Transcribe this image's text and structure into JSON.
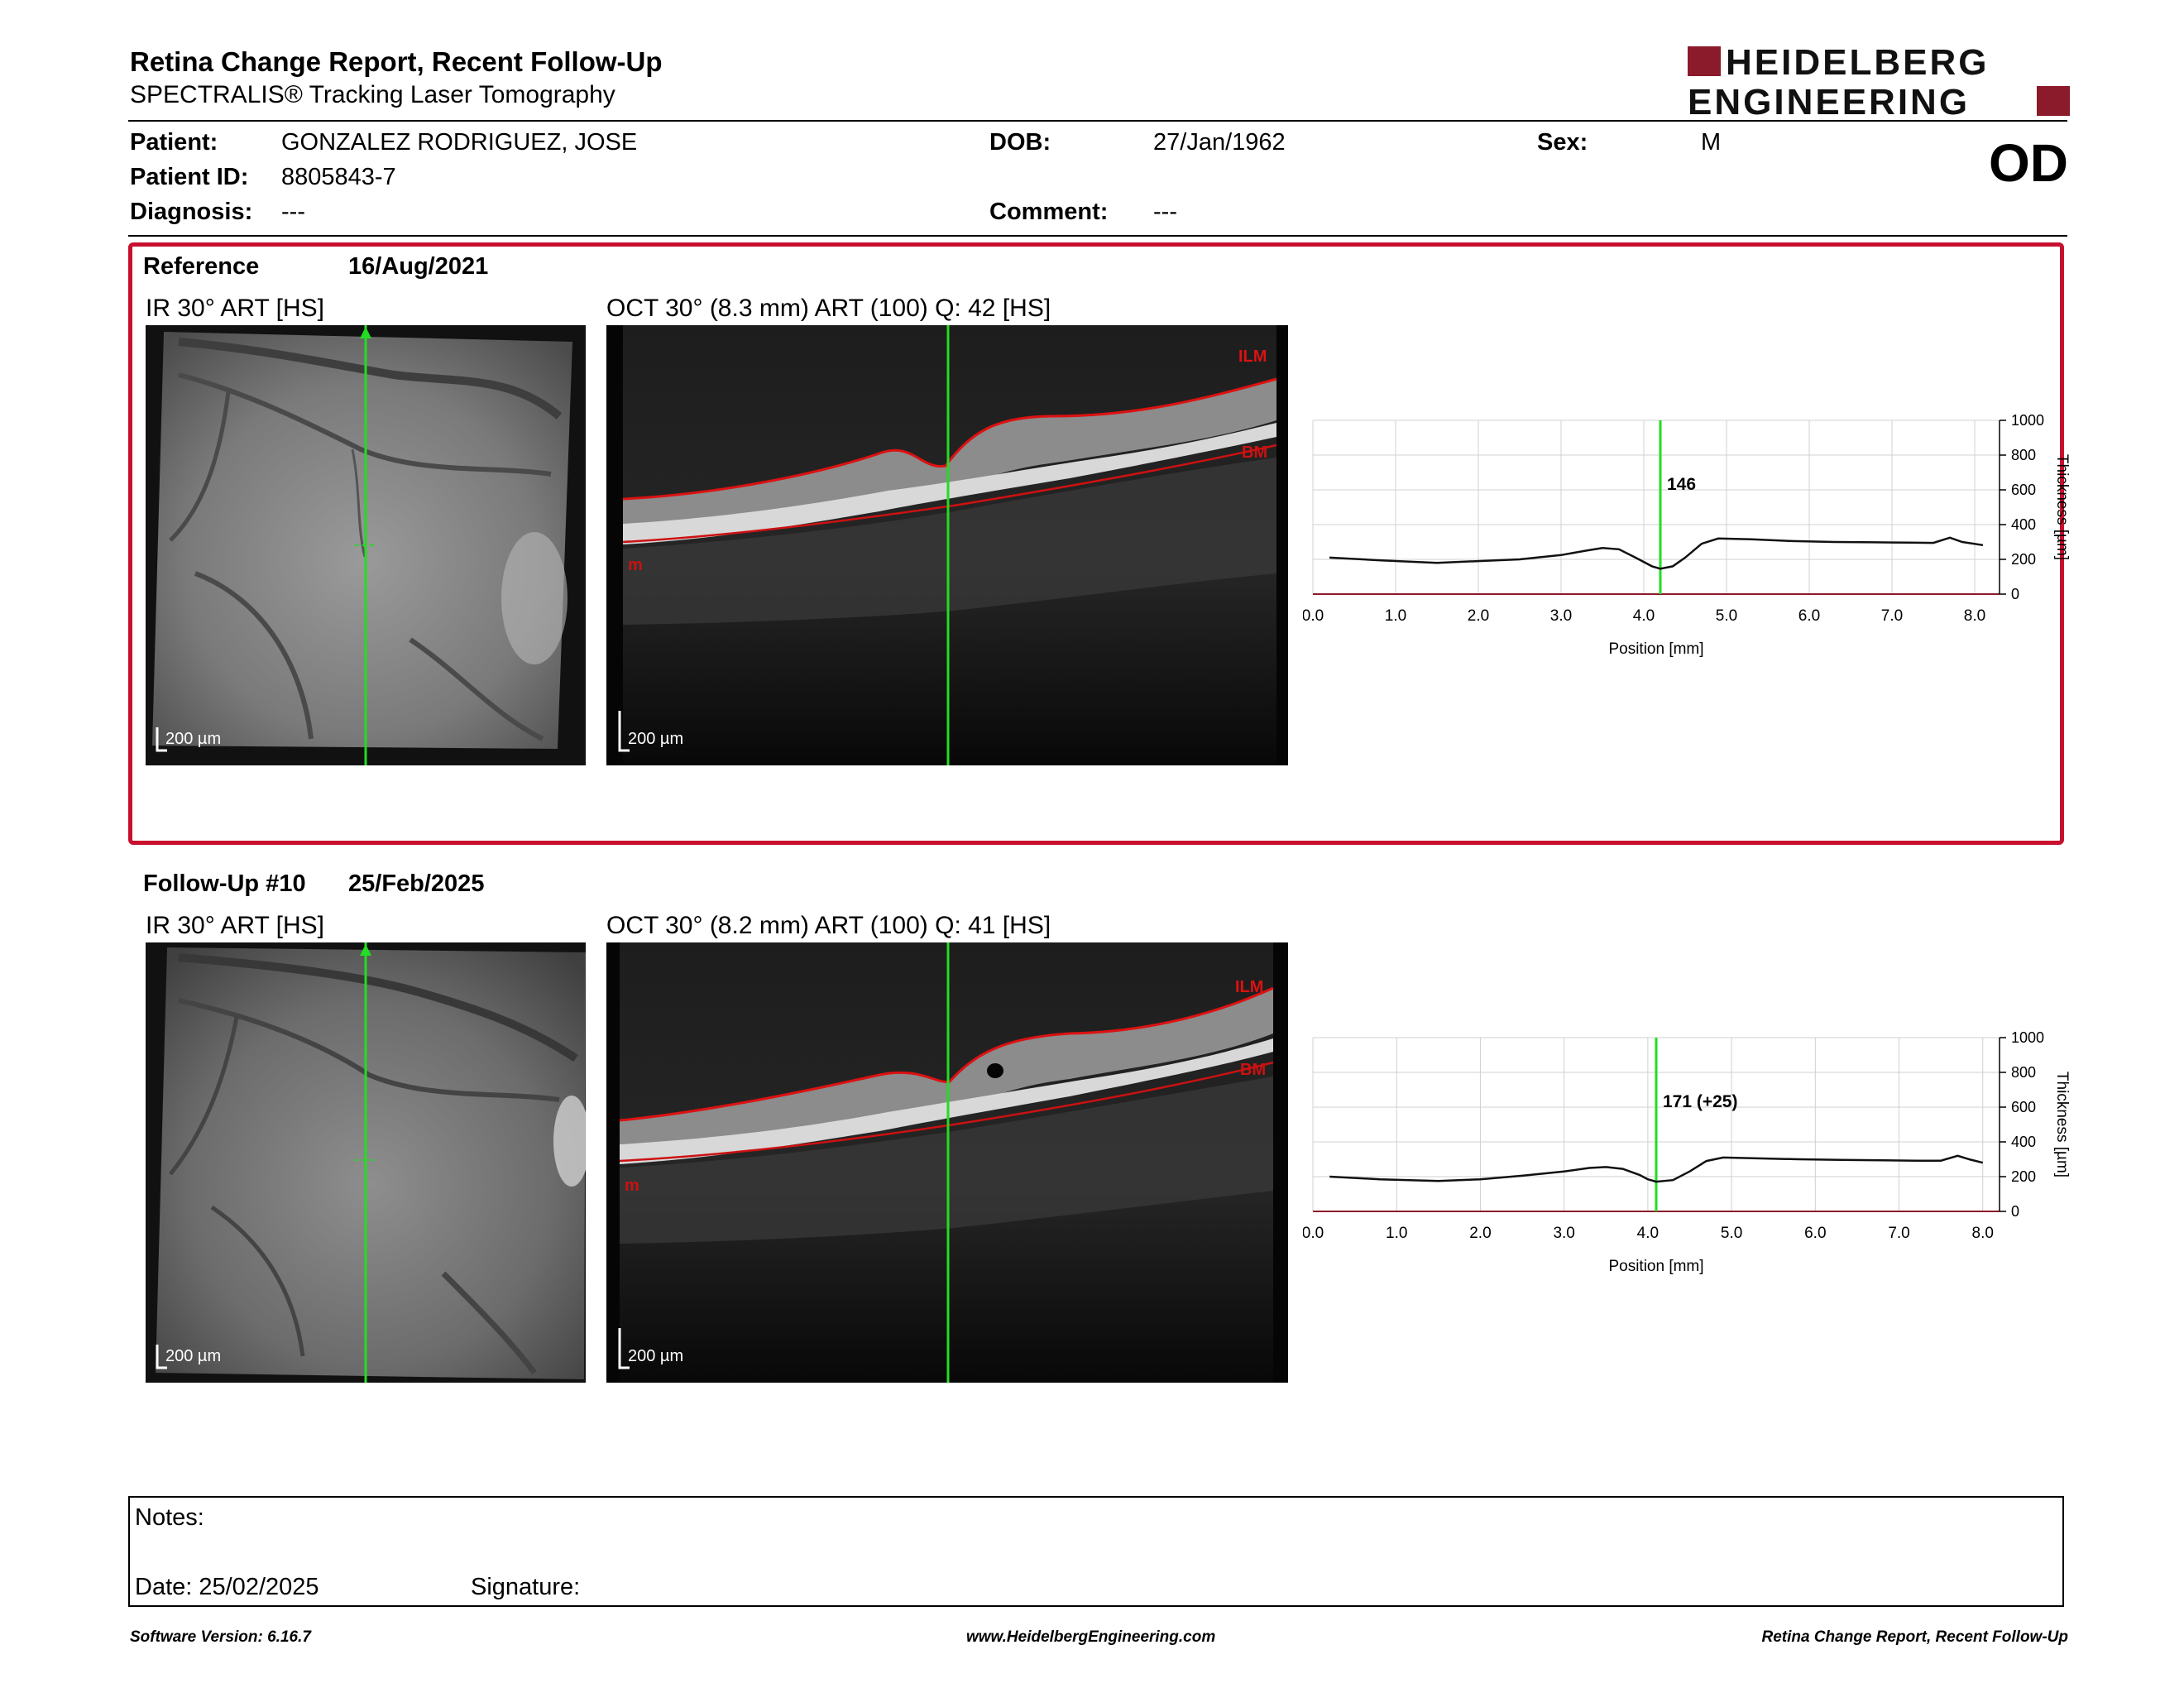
{
  "header": {
    "title": "Retina Change Report, Recent Follow-Up",
    "subtitle": "SPECTRALIS® Tracking Laser Tomography",
    "logo_line1": "HEIDELBERG",
    "logo_line2": "ENGINEERING"
  },
  "patient": {
    "name_label": "Patient:",
    "name": "GONZALEZ RODRIGUEZ, JOSE",
    "id_label": "Patient ID:",
    "id": "8805843-7",
    "diagnosis_label": "Diagnosis:",
    "diagnosis": "---",
    "dob_label": "DOB:",
    "dob": "27/Jan/1962",
    "comment_label": "Comment:",
    "comment": "---",
    "sex_label": "Sex:",
    "sex": "M",
    "eye": "OD"
  },
  "reference": {
    "label": "Reference",
    "date": "16/Aug/2021",
    "ir_caption": "IR 30° ART [HS]",
    "oct_caption": "OCT 30° (8.3 mm) ART (100) Q: 42 [HS]",
    "scale_bar": "200 µm",
    "ilm_label": "ILM",
    "bm_label": "BM",
    "m_label": "m",
    "thickness_value": "146"
  },
  "followup": {
    "label": "Follow-Up #10",
    "date": "25/Feb/2025",
    "ir_caption": "IR 30° ART [HS]",
    "oct_caption": "OCT 30° (8.2 mm) ART (100) Q: 41 [HS]",
    "scale_bar": "200 µm",
    "ilm_label": "ILM",
    "bm_label": "BM",
    "m_label": "m",
    "thickness_value": "171 (+25)"
  },
  "chart_data": [
    {
      "type": "line",
      "xlabel": "Position [mm]",
      "ylabel": "Thickness [µm]",
      "xlim": [
        0,
        8.3
      ],
      "ylim": [
        0,
        1000
      ],
      "x_ticks": [
        "0.0",
        "1.0",
        "2.0",
        "3.0",
        "4.0",
        "5.0",
        "6.0",
        "7.0",
        "8.0"
      ],
      "y_ticks": [
        "0",
        "200",
        "400",
        "600",
        "800",
        "1000"
      ],
      "grid": true,
      "marker_x": 4.2,
      "marker_label": "146",
      "series": [
        {
          "x": [
            0.2,
            0.8,
            1.5,
            2.0,
            2.5,
            3.0,
            3.3,
            3.5,
            3.7,
            3.9,
            4.1,
            4.2,
            4.35,
            4.5,
            4.7,
            4.9,
            5.3,
            5.8,
            6.3,
            6.8,
            7.2,
            7.5,
            7.7,
            7.85,
            8.1
          ],
          "y": [
            210,
            195,
            180,
            190,
            200,
            225,
            250,
            265,
            258,
            210,
            160,
            146,
            160,
            210,
            290,
            320,
            315,
            305,
            300,
            298,
            296,
            295,
            325,
            300,
            282
          ]
        }
      ]
    },
    {
      "type": "line",
      "xlabel": "Position [mm]",
      "ylabel": "Thickness [µm]",
      "xlim": [
        0,
        8.2
      ],
      "ylim": [
        0,
        1000
      ],
      "x_ticks": [
        "0.0",
        "1.0",
        "2.0",
        "3.0",
        "4.0",
        "5.0",
        "6.0",
        "7.0",
        "8.0"
      ],
      "y_ticks": [
        "0",
        "200",
        "400",
        "600",
        "800",
        "1000"
      ],
      "grid": true,
      "marker_x": 4.1,
      "marker_label": "171 (+25)",
      "series": [
        {
          "x": [
            0.2,
            0.8,
            1.5,
            2.0,
            2.5,
            3.0,
            3.3,
            3.5,
            3.7,
            3.9,
            4.0,
            4.1,
            4.3,
            4.5,
            4.7,
            4.9,
            5.3,
            5.8,
            6.3,
            6.8,
            7.2,
            7.5,
            7.7,
            7.85,
            8.0
          ],
          "y": [
            200,
            185,
            175,
            185,
            205,
            230,
            250,
            255,
            245,
            210,
            185,
            171,
            180,
            230,
            290,
            310,
            305,
            300,
            296,
            294,
            292,
            292,
            320,
            298,
            280
          ]
        }
      ]
    }
  ],
  "notes": {
    "notes_label": "Notes:",
    "date_label": "Date: 25/02/2025",
    "signature_label": "Signature:"
  },
  "footer": {
    "left": "Software Version: 6.16.7",
    "center": "www.HeidelbergEngineering.com",
    "right": "Retina Change Report, Recent Follow-Up"
  },
  "colors": {
    "brand": "#8b1a2b",
    "frame": "#c8102e",
    "marker": "#22dd22",
    "segmentation": "#cc1111"
  }
}
